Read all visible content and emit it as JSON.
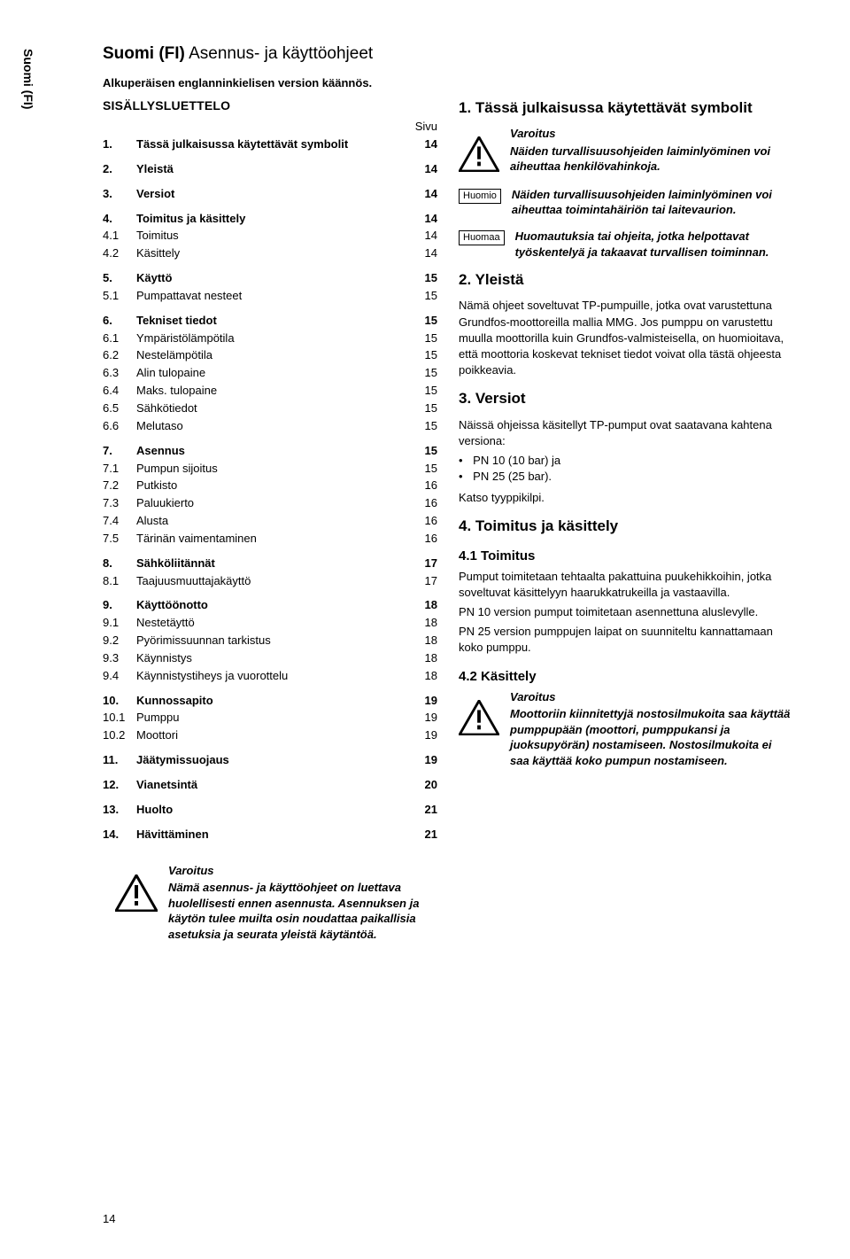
{
  "side_tab": "Suomi (FI)",
  "title_bold": "Suomi (FI)",
  "title_rest": " Asennus- ja käyttöohjeet",
  "subtitle": "Alkuperäisen englanninkielisen version käännös.",
  "toc_heading": "SISÄLLYSLUETTELO",
  "sivu": "Sivu",
  "page_number": "14",
  "toc": [
    {
      "t": "section",
      "n": "1.",
      "l": "Tässä julkaisussa käytettävät symbolit",
      "p": "14"
    },
    {
      "t": "section",
      "n": "2.",
      "l": "Yleistä",
      "p": "14"
    },
    {
      "t": "section",
      "n": "3.",
      "l": "Versiot",
      "p": "14"
    },
    {
      "t": "section",
      "n": "4.",
      "l": "Toimitus ja käsittely",
      "p": "14"
    },
    {
      "t": "sub",
      "n": "4.1",
      "l": "Toimitus",
      "p": "14"
    },
    {
      "t": "sub",
      "n": "4.2",
      "l": "Käsittely",
      "p": "14"
    },
    {
      "t": "section",
      "n": "5.",
      "l": "Käyttö",
      "p": "15"
    },
    {
      "t": "sub",
      "n": "5.1",
      "l": "Pumpattavat nesteet",
      "p": "15"
    },
    {
      "t": "section",
      "n": "6.",
      "l": "Tekniset tiedot",
      "p": "15"
    },
    {
      "t": "sub",
      "n": "6.1",
      "l": "Ympäristölämpötila",
      "p": "15"
    },
    {
      "t": "sub",
      "n": "6.2",
      "l": "Nestelämpötila",
      "p": "15"
    },
    {
      "t": "sub",
      "n": "6.3",
      "l": "Alin tulopaine",
      "p": "15"
    },
    {
      "t": "sub",
      "n": "6.4",
      "l": "Maks. tulopaine",
      "p": "15"
    },
    {
      "t": "sub",
      "n": "6.5",
      "l": "Sähkötiedot",
      "p": "15"
    },
    {
      "t": "sub",
      "n": "6.6",
      "l": "Melutaso",
      "p": "15"
    },
    {
      "t": "section",
      "n": "7.",
      "l": "Asennus",
      "p": "15"
    },
    {
      "t": "sub",
      "n": "7.1",
      "l": "Pumpun sijoitus",
      "p": "15"
    },
    {
      "t": "sub",
      "n": "7.2",
      "l": "Putkisto",
      "p": "16"
    },
    {
      "t": "sub",
      "n": "7.3",
      "l": "Paluukierto",
      "p": "16"
    },
    {
      "t": "sub",
      "n": "7.4",
      "l": "Alusta",
      "p": "16"
    },
    {
      "t": "sub",
      "n": "7.5",
      "l": "Tärinän vaimentaminen",
      "p": "16"
    },
    {
      "t": "section",
      "n": "8.",
      "l": "Sähköliitännät",
      "p": "17"
    },
    {
      "t": "sub",
      "n": "8.1",
      "l": "Taajuusmuuttajakäyttö",
      "p": "17"
    },
    {
      "t": "section",
      "n": "9.",
      "l": "Käyttöönotto",
      "p": "18"
    },
    {
      "t": "sub",
      "n": "9.1",
      "l": "Nestetäyttö",
      "p": "18"
    },
    {
      "t": "sub",
      "n": "9.2",
      "l": "Pyörimissuunnan tarkistus",
      "p": "18"
    },
    {
      "t": "sub",
      "n": "9.3",
      "l": "Käynnistys",
      "p": "18"
    },
    {
      "t": "sub",
      "n": "9.4",
      "l": "Käynnistystiheys ja vuorottelu",
      "p": "18"
    },
    {
      "t": "section",
      "n": "10.",
      "l": "Kunnossapito",
      "p": "19"
    },
    {
      "t": "sub",
      "n": "10.1",
      "l": "Pumppu",
      "p": "19"
    },
    {
      "t": "sub",
      "n": "10.2",
      "l": "Moottori",
      "p": "19"
    },
    {
      "t": "section",
      "n": "11.",
      "l": "Jäätymissuojaus",
      "p": "19"
    },
    {
      "t": "section",
      "n": "12.",
      "l": "Vianetsintä",
      "p": "20"
    },
    {
      "t": "section",
      "n": "13.",
      "l": "Huolto",
      "p": "21"
    },
    {
      "t": "section",
      "n": "14.",
      "l": "Hävittäminen",
      "p": "21"
    }
  ],
  "left_warning": {
    "title": "Varoitus",
    "body": "Nämä asennus- ja käyttöohjeet on luettava huolellisesti ennen asennusta. Asennuksen ja käytön tulee muilta osin noudattaa paikallisia asetuksia ja seurata yleistä käytäntöä."
  },
  "right": {
    "sec1_title": "1. Tässä julkaisussa käytettävät symbolit",
    "warn1": {
      "title": "Varoitus",
      "body": "Näiden turvallisuusohjeiden laiminlyöminen voi aiheuttaa henkilövahinkoja."
    },
    "box_huomio": "Huomio",
    "huomio_body": "Näiden turvallisuusohjeiden laiminlyöminen voi aiheuttaa toimintahäiriön tai laitevaurion.",
    "box_huomaa": "Huomaa",
    "huomaa_body": "Huomautuksia tai ohjeita, jotka helpottavat työskentelyä ja takaavat turvallisen toiminnan.",
    "sec2_title": "2. Yleistä",
    "sec2_p": "Nämä ohjeet soveltuvat TP-pumpuille, jotka ovat varustettuna Grundfos-moottoreilla mallia MMG. Jos pumppu on varustettu muulla moottorilla kuin Grundfos-valmisteisella, on huomioitava, että moottoria koskevat tekniset tiedot voivat olla tästä ohjeesta poikkeavia.",
    "sec3_title": "3. Versiot",
    "sec3_p1": "Näissä ohjeissa käsitellyt TP-pumput ovat saatavana kahtena versiona:",
    "sec3_li1": "PN 10 (10 bar) ja",
    "sec3_li2": "PN 25 (25 bar).",
    "sec3_p2": "Katso tyyppikilpi.",
    "sec4_title": "4. Toimitus ja käsittely",
    "sec41_title": "4.1 Toimitus",
    "sec41_p1": "Pumput toimitetaan tehtaalta pakattuina puukehikkoihin, jotka soveltuvat käsittelyyn haarukkatrukeilla ja vastaavilla.",
    "sec41_p2": "PN 10 version pumput toimitetaan asennettuna aluslevylle.",
    "sec41_p3": "PN 25 version pumppujen laipat on suunniteltu kannattamaan koko pumppu.",
    "sec42_title": "4.2 Käsittely",
    "warn2": {
      "title": "Varoitus",
      "body": "Moottoriin kiinnitettyjä nostosilmukoita saa käyttää pumppupään (moottori, pumppukansi ja juoksupyörän) nostamiseen. Nostosilmukoita ei saa käyttää koko pumpun nostamiseen."
    }
  }
}
